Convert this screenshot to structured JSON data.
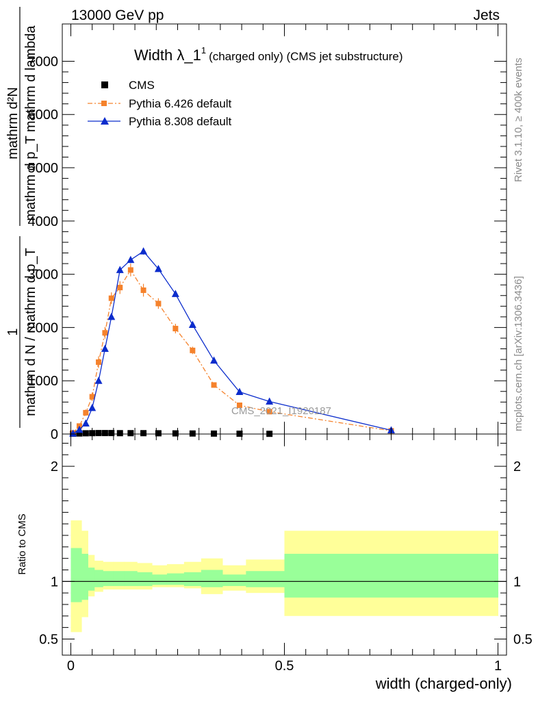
{
  "header": {
    "left": "13000 GeV pp",
    "right": "Jets"
  },
  "side_labels": {
    "rivet": "Rivet 3.1.10, ≥ 400k events",
    "mcplots": "mcplots.cern.ch [arXiv:1306.3436]"
  },
  "watermark": "CMS_2021_I1920187",
  "chart_data": [
    {
      "id": "main",
      "type": "line",
      "title": "Width λ_1",
      "title_sup": "1",
      "subtitle": "(charged only) (CMS jet substructure)",
      "ylabel": {
        "frac1_num": "1",
        "frac1_den": "mathrm d N / mathrm d p_T",
        "frac2_num": "mathrm d²N",
        "frac2_den": "mathrm d p_T mathrm d lambda"
      },
      "xlim": [
        -0.02,
        1.02
      ],
      "ylim": [
        0,
        7700
      ],
      "yticks": [
        0,
        1000,
        2000,
        3000,
        4000,
        5000,
        6000,
        7000
      ],
      "ytick_labels": [
        "0",
        "1000",
        "2000",
        "3000",
        "4000",
        "5000",
        "6000",
        "7000"
      ],
      "legend": [
        "CMS",
        "Pythia 6.426 default",
        "Pythia 8.308 default"
      ],
      "series": [
        {
          "name": "CMS",
          "color": "#000000",
          "marker": "square",
          "x": [
            0.005,
            0.02,
            0.035,
            0.05,
            0.065,
            0.08,
            0.095,
            0.115,
            0.14,
            0.17,
            0.205,
            0.245,
            0.285,
            0.335,
            0.395,
            0.465
          ],
          "y": [
            6,
            10,
            14,
            16,
            18,
            18,
            18,
            16,
            16,
            16,
            14,
            12,
            10,
            8,
            6,
            4
          ]
        },
        {
          "name": "Pythia 6.426 default",
          "color": "#f5822c",
          "marker": "square",
          "x": [
            0.005,
            0.02,
            0.035,
            0.05,
            0.065,
            0.08,
            0.095,
            0.115,
            0.14,
            0.17,
            0.205,
            0.245,
            0.285,
            0.335,
            0.395,
            0.465,
            0.75
          ],
          "y": [
            20,
            150,
            400,
            700,
            1350,
            1900,
            2550,
            2750,
            3080,
            2700,
            2450,
            1980,
            1570,
            920,
            540,
            420,
            60
          ],
          "err": [
            10,
            40,
            60,
            80,
            110,
            110,
            110,
            120,
            120,
            120,
            100,
            90,
            70,
            50,
            40,
            30,
            10
          ]
        },
        {
          "name": "Pythia 8.308 default",
          "color": "#0b2ccc",
          "marker": "triangle",
          "x": [
            0.005,
            0.02,
            0.035,
            0.05,
            0.065,
            0.08,
            0.095,
            0.115,
            0.14,
            0.17,
            0.205,
            0.245,
            0.285,
            0.335,
            0.395,
            0.465,
            0.75
          ],
          "y": [
            10,
            80,
            200,
            490,
            1000,
            1600,
            2200,
            3080,
            3270,
            3430,
            3100,
            2630,
            2050,
            1380,
            790,
            610,
            70
          ],
          "err": [
            5,
            15,
            20,
            30,
            40,
            50,
            55,
            60,
            60,
            60,
            55,
            50,
            40,
            30,
            25,
            20,
            10
          ]
        }
      ]
    },
    {
      "id": "ratio",
      "type": "area",
      "ylabel": "Ratio to CMS",
      "xlabel": "width (charged-only)",
      "xlim": [
        -0.02,
        1.02
      ],
      "ylim": [
        0.36,
        2.28
      ],
      "yticks": [
        0.5,
        1,
        2
      ],
      "ytick_labels": [
        "0.5",
        "1",
        "2"
      ],
      "xticks": [
        0,
        0.5,
        1
      ],
      "xtick_labels": [
        "0",
        "0.5",
        "1"
      ],
      "bin_edges": [
        0,
        0.025,
        0.04,
        0.055,
        0.075,
        0.1,
        0.125,
        0.155,
        0.19,
        0.225,
        0.265,
        0.305,
        0.355,
        0.41,
        0.5,
        1.0
      ],
      "band_outer_low": [
        0.56,
        0.69,
        0.87,
        0.91,
        0.93,
        0.93,
        0.93,
        0.93,
        0.95,
        0.95,
        0.94,
        0.89,
        0.92,
        0.9,
        0.7
      ],
      "band_outer_high": [
        1.53,
        1.44,
        1.23,
        1.18,
        1.17,
        1.17,
        1.17,
        1.16,
        1.14,
        1.15,
        1.17,
        1.2,
        1.14,
        1.19,
        1.44
      ],
      "band_inner_low": [
        0.82,
        0.84,
        0.92,
        0.95,
        0.96,
        0.96,
        0.96,
        0.96,
        0.97,
        0.97,
        0.96,
        0.95,
        0.96,
        0.95,
        0.86
      ],
      "band_inner_high": [
        1.29,
        1.24,
        1.12,
        1.1,
        1.09,
        1.09,
        1.09,
        1.08,
        1.06,
        1.07,
        1.08,
        1.1,
        1.06,
        1.09,
        1.24
      ],
      "reference_line": 1,
      "colors": {
        "outer_band": "#ffff99",
        "inner_band": "#99ff99",
        "line": "#000000"
      }
    }
  ]
}
